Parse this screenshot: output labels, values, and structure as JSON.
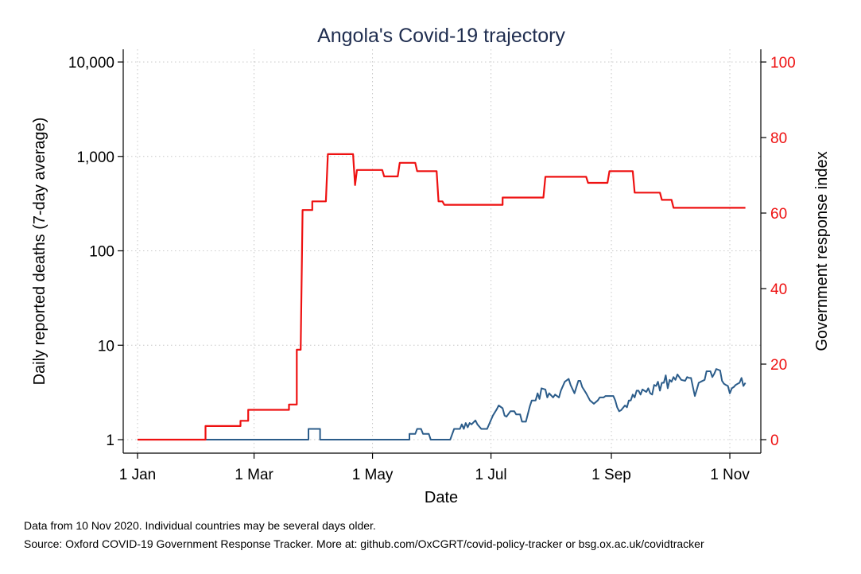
{
  "chart_data": {
    "type": "line",
    "title": "Angola's Covid-19 trajectory",
    "xlabel": "Date",
    "ylabel": "Daily reported deaths (7-day average)",
    "y2label": "Government response index",
    "x_ticks": [
      {
        "day": 0,
        "label": "1 Jan"
      },
      {
        "day": 60,
        "label": "1 Mar"
      },
      {
        "day": 121,
        "label": "1 May"
      },
      {
        "day": 182,
        "label": "1 Jul"
      },
      {
        "day": 244,
        "label": "1 Sep"
      },
      {
        "day": 305,
        "label": "1 Nov"
      }
    ],
    "x_range_days": [
      0,
      314
    ],
    "y_scale": "log",
    "y_range": [
      1,
      10000
    ],
    "y_ticks": [
      {
        "value": 1,
        "label": "1"
      },
      {
        "value": 10,
        "label": "10"
      },
      {
        "value": 100,
        "label": "100"
      },
      {
        "value": 1000,
        "label": "1,000"
      },
      {
        "value": 10000,
        "label": "10,000"
      }
    ],
    "y2_range": [
      0,
      100
    ],
    "y2_ticks": [
      {
        "value": 0,
        "label": "0"
      },
      {
        "value": 20,
        "label": "20"
      },
      {
        "value": 40,
        "label": "40"
      },
      {
        "value": 60,
        "label": "60"
      },
      {
        "value": 80,
        "label": "80"
      },
      {
        "value": 100,
        "label": "100"
      }
    ],
    "grid": true,
    "series": [
      {
        "axis": "left",
        "color": "#2b5c8a",
        "points": [
          [
            0,
            1
          ],
          [
            88,
            1
          ],
          [
            88,
            1.3
          ],
          [
            94,
            1.3
          ],
          [
            94,
            1
          ],
          [
            140,
            1
          ],
          [
            140,
            1.15
          ],
          [
            143,
            1.15
          ],
          [
            144,
            1.3
          ],
          [
            146,
            1.3
          ],
          [
            147,
            1.15
          ],
          [
            150,
            1.15
          ],
          [
            151,
            1
          ],
          [
            161,
            1
          ],
          [
            163,
            1.3
          ],
          [
            166,
            1.3
          ],
          [
            167,
            1.45
          ],
          [
            168,
            1.3
          ],
          [
            169,
            1.5
          ],
          [
            170,
            1.35
          ],
          [
            171,
            1.5
          ],
          [
            172,
            1.45
          ],
          [
            174,
            1.6
          ],
          [
            175,
            1.45
          ],
          [
            177,
            1.3
          ],
          [
            180,
            1.3
          ],
          [
            183,
            1.8
          ],
          [
            185,
            2.1
          ],
          [
            186,
            2.3
          ],
          [
            188,
            2.15
          ],
          [
            189,
            1.8
          ],
          [
            190,
            1.75
          ],
          [
            192,
            2.0
          ],
          [
            194,
            2.0
          ],
          [
            195,
            1.85
          ],
          [
            197,
            1.85
          ],
          [
            198,
            1.55
          ],
          [
            200,
            1.55
          ],
          [
            202,
            2.25
          ],
          [
            203,
            2.6
          ],
          [
            205,
            2.6
          ],
          [
            206,
            3.1
          ],
          [
            207,
            2.7
          ],
          [
            208,
            3.5
          ],
          [
            210,
            3.4
          ],
          [
            211,
            2.8
          ],
          [
            212,
            3.1
          ],
          [
            214,
            2.8
          ],
          [
            215,
            3.0
          ],
          [
            217,
            2.8
          ],
          [
            218,
            3.3
          ],
          [
            220,
            4.1
          ],
          [
            222,
            4.4
          ],
          [
            223,
            3.8
          ],
          [
            225,
            3.1
          ],
          [
            227,
            4.2
          ],
          [
            228,
            4.2
          ],
          [
            229,
            3.6
          ],
          [
            231,
            3.1
          ],
          [
            233,
            2.6
          ],
          [
            235,
            2.4
          ],
          [
            237,
            2.6
          ],
          [
            238,
            2.8
          ],
          [
            240,
            2.8
          ],
          [
            241,
            2.9
          ],
          [
            245,
            2.9
          ],
          [
            246,
            2.6
          ],
          [
            247,
            2.2
          ],
          [
            248,
            2.0
          ],
          [
            249,
            2.05
          ],
          [
            251,
            2.3
          ],
          [
            252,
            2.2
          ],
          [
            253,
            2.6
          ],
          [
            254,
            2.6
          ],
          [
            255,
            3.0
          ],
          [
            256,
            2.8
          ],
          [
            257,
            3.3
          ],
          [
            258,
            3.3
          ],
          [
            259,
            3.0
          ],
          [
            260,
            3.4
          ],
          [
            262,
            3.2
          ],
          [
            263,
            3.5
          ],
          [
            264,
            3.1
          ],
          [
            265,
            3.0
          ],
          [
            266,
            3.8
          ],
          [
            267,
            3.7
          ],
          [
            268,
            4.1
          ],
          [
            269,
            3.3
          ],
          [
            270,
            4.0
          ],
          [
            271,
            4.0
          ],
          [
            272,
            4.8
          ],
          [
            273,
            3.5
          ],
          [
            274,
            4.3
          ],
          [
            275,
            4.1
          ],
          [
            276,
            4.6
          ],
          [
            277,
            4.3
          ],
          [
            278,
            4.9
          ],
          [
            279,
            4.6
          ],
          [
            280,
            4.3
          ],
          [
            282,
            4.2
          ],
          [
            283,
            4.6
          ],
          [
            284,
            4.5
          ],
          [
            285,
            4.5
          ],
          [
            286,
            3.6
          ],
          [
            287,
            2.9
          ],
          [
            288,
            3.4
          ],
          [
            289,
            4.0
          ],
          [
            290,
            4.1
          ],
          [
            292,
            4.3
          ],
          [
            293,
            5.3
          ],
          [
            295,
            5.3
          ],
          [
            296,
            4.6
          ],
          [
            297,
            5.0
          ],
          [
            298,
            5.6
          ],
          [
            299,
            5.5
          ],
          [
            300,
            5.4
          ],
          [
            301,
            4.2
          ],
          [
            302,
            3.9
          ],
          [
            303,
            3.8
          ],
          [
            304,
            3.7
          ],
          [
            305,
            3.1
          ],
          [
            306,
            3.5
          ],
          [
            307,
            3.6
          ],
          [
            308,
            3.8
          ],
          [
            309,
            3.9
          ],
          [
            310,
            4.0
          ],
          [
            311,
            4.5
          ],
          [
            312,
            3.7
          ],
          [
            313,
            4.0
          ]
        ]
      },
      {
        "axis": "right",
        "color": "#ee1111",
        "points": [
          [
            0,
            0
          ],
          [
            35,
            0
          ],
          [
            35,
            3.6
          ],
          [
            53,
            3.6
          ],
          [
            53,
            5.0
          ],
          [
            57,
            5.0
          ],
          [
            57,
            7.9
          ],
          [
            78,
            7.9
          ],
          [
            78,
            9.3
          ],
          [
            82,
            9.3
          ],
          [
            82,
            23.8
          ],
          [
            84,
            23.8
          ],
          [
            85,
            60.8
          ],
          [
            90,
            60.8
          ],
          [
            90,
            63.1
          ],
          [
            97,
            63.1
          ],
          [
            98,
            75.6
          ],
          [
            111,
            75.6
          ],
          [
            112,
            67.4
          ],
          [
            113,
            71.4
          ],
          [
            126,
            71.4
          ],
          [
            127,
            69.7
          ],
          [
            134,
            69.7
          ],
          [
            135,
            73.3
          ],
          [
            143,
            73.3
          ],
          [
            144,
            71.1
          ],
          [
            154,
            71.1
          ],
          [
            155,
            63.1
          ],
          [
            157,
            63.1
          ],
          [
            158,
            62.2
          ],
          [
            188,
            62.2
          ],
          [
            188,
            64.1
          ],
          [
            209,
            64.1
          ],
          [
            210,
            69.6
          ],
          [
            231,
            69.6
          ],
          [
            232,
            68.0
          ],
          [
            242,
            68.0
          ],
          [
            243,
            71.1
          ],
          [
            255,
            71.1
          ],
          [
            256,
            65.4
          ],
          [
            269,
            65.4
          ],
          [
            270,
            63.5
          ],
          [
            275,
            63.5
          ],
          [
            276,
            61.4
          ],
          [
            313,
            61.4
          ]
        ]
      }
    ]
  },
  "notes": [
    "Data from 10 Nov 2020. Individual countries may be several days older.",
    "Source: Oxford COVID-19 Government Response Tracker. More at: github.com/OxCGRT/covid-policy-tracker or bsg.ox.ac.uk/covidtracker"
  ],
  "colors": {
    "left_axis": "#000000",
    "right_axis": "#ee1111",
    "grid": "#c8c8c8"
  }
}
